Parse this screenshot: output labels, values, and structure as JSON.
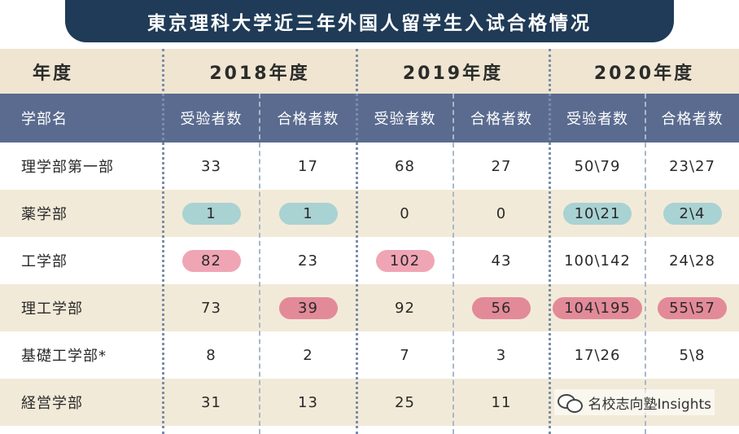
{
  "title": "東京理科大学近三年外国人留学生入试合格情况",
  "years": [
    "年度",
    "2018年度",
    "2019年度",
    "2020年度"
  ],
  "headers": [
    "学部名",
    "受验者数",
    "合格者数",
    "受验者数",
    "合格者数",
    "受验者数",
    "合格者数"
  ],
  "rows": [
    {
      "name": "理学部第一部",
      "cells": [
        {
          "v": "33",
          "hl": ""
        },
        {
          "v": "17",
          "hl": ""
        },
        {
          "v": "68",
          "hl": ""
        },
        {
          "v": "27",
          "hl": ""
        },
        {
          "v": "50\\79",
          "hl": ""
        },
        {
          "v": "23\\27",
          "hl": ""
        }
      ]
    },
    {
      "name": "薬学部",
      "cells": [
        {
          "v": "1",
          "hl": "teal"
        },
        {
          "v": "1",
          "hl": "teal"
        },
        {
          "v": "0",
          "hl": ""
        },
        {
          "v": "0",
          "hl": ""
        },
        {
          "v": "10\\21",
          "hl": "teal"
        },
        {
          "v": "2\\4",
          "hl": "teal"
        }
      ]
    },
    {
      "name": "工学部",
      "cells": [
        {
          "v": "82",
          "hl": "pink"
        },
        {
          "v": "23",
          "hl": ""
        },
        {
          "v": "102",
          "hl": "pink"
        },
        {
          "v": "43",
          "hl": ""
        },
        {
          "v": "100\\142",
          "hl": ""
        },
        {
          "v": "24\\28",
          "hl": ""
        }
      ]
    },
    {
      "name": "理工学部",
      "cells": [
        {
          "v": "73",
          "hl": ""
        },
        {
          "v": "39",
          "hl": "rose"
        },
        {
          "v": "92",
          "hl": ""
        },
        {
          "v": "56",
          "hl": "rose"
        },
        {
          "v": "104\\195",
          "hl": "rose"
        },
        {
          "v": "55\\57",
          "hl": "rose"
        }
      ]
    },
    {
      "name": "基礎工学部*",
      "cells": [
        {
          "v": "8",
          "hl": ""
        },
        {
          "v": "2",
          "hl": ""
        },
        {
          "v": "7",
          "hl": ""
        },
        {
          "v": "3",
          "hl": ""
        },
        {
          "v": "17\\26",
          "hl": ""
        },
        {
          "v": "5\\8",
          "hl": ""
        }
      ]
    },
    {
      "name": "経営学部",
      "cells": [
        {
          "v": "31",
          "hl": ""
        },
        {
          "v": "13",
          "hl": ""
        },
        {
          "v": "25",
          "hl": ""
        },
        {
          "v": "11",
          "hl": ""
        },
        {
          "v": "",
          "hl": ""
        },
        {
          "v": "",
          "hl": ""
        }
      ]
    }
  ],
  "footer": {
    "text": "名校志向塾Insights",
    "icon": "wechat-icon"
  },
  "colors": {
    "title_bg": "#1f3b57",
    "header_bg": "#5a6b8f",
    "beige": "#f2ead8",
    "teal": "#a9d2d3",
    "pink": "#f0a5b4",
    "rose": "#e38a99"
  }
}
